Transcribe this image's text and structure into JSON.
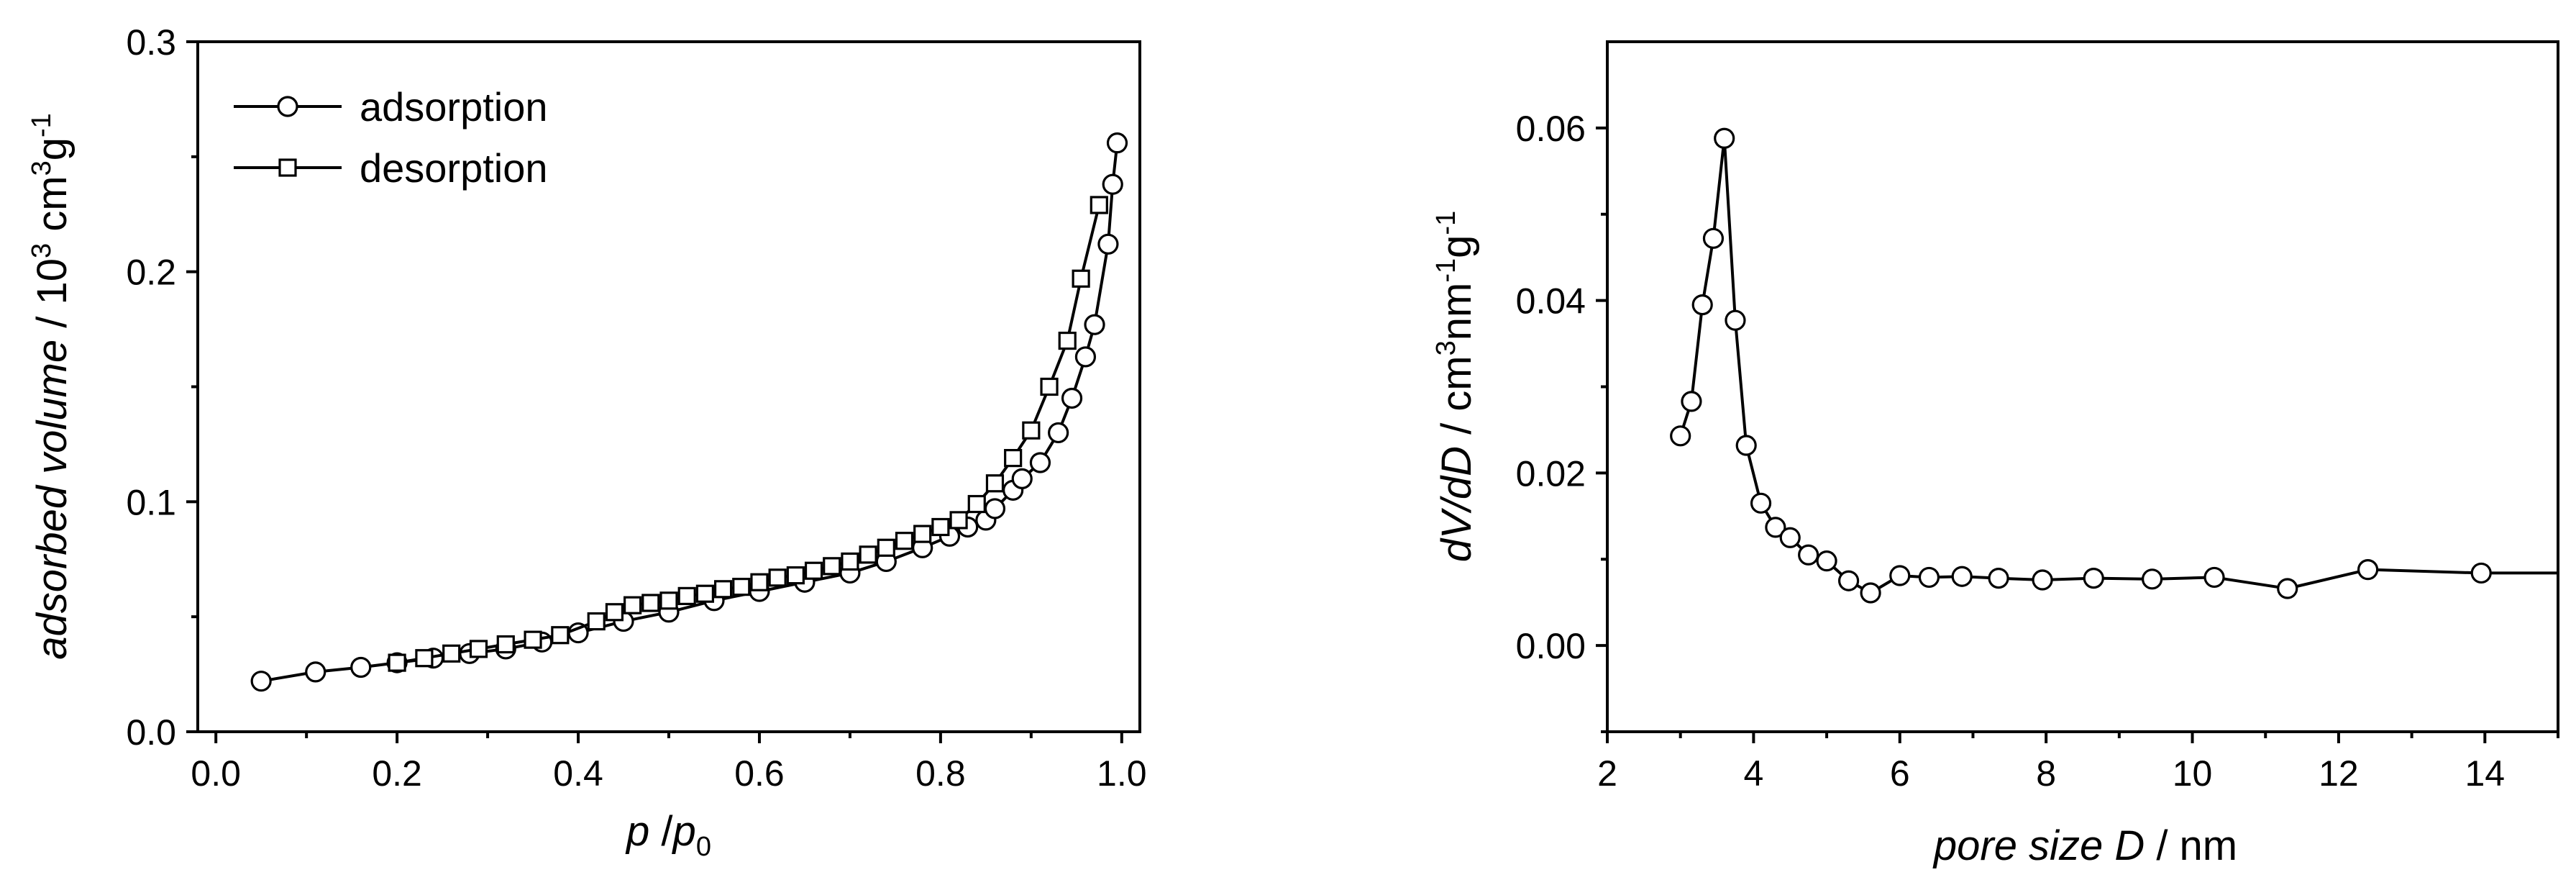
{
  "chart_data": [
    {
      "type": "line",
      "xlabel_main": "p",
      "xlabel_sep": " /",
      "xlabel_var": "p",
      "xlabel_sub": "0",
      "ylabel_main": "adsorbed volume",
      "ylabel_unit_a": " / 10",
      "ylabel_sup_a": "3",
      "ylabel_unit_b": " cm",
      "ylabel_sup_b": "3",
      "ylabel_unit_c": "g",
      "ylabel_sup_c": "-1",
      "xlim": [
        -0.02,
        1.02
      ],
      "ylim": [
        0.0,
        0.3
      ],
      "xticks": [
        {
          "value": 0.0,
          "label": "0.0"
        },
        {
          "value": 0.2,
          "label": "0.2"
        },
        {
          "value": 0.4,
          "label": "0.4"
        },
        {
          "value": 0.6,
          "label": "0.6"
        },
        {
          "value": 0.8,
          "label": "0.8"
        },
        {
          "value": 1.0,
          "label": "1.0"
        }
      ],
      "yticks": [
        {
          "value": 0.0,
          "label": "0.0"
        },
        {
          "value": 0.1,
          "label": "0.1"
        },
        {
          "value": 0.2,
          "label": "0.2"
        },
        {
          "value": 0.3,
          "label": "0.3"
        }
      ],
      "legend_position": "top-left",
      "series": [
        {
          "name": "adsorption",
          "marker": "circle",
          "x": [
            0.05,
            0.11,
            0.16,
            0.2,
            0.24,
            0.28,
            0.32,
            0.36,
            0.4,
            0.45,
            0.5,
            0.55,
            0.6,
            0.65,
            0.7,
            0.74,
            0.78,
            0.81,
            0.83,
            0.85,
            0.86,
            0.88,
            0.89,
            0.91,
            0.93,
            0.945,
            0.96,
            0.97,
            0.985,
            0.99,
            0.995
          ],
          "y": [
            0.022,
            0.026,
            0.028,
            0.03,
            0.032,
            0.034,
            0.036,
            0.039,
            0.043,
            0.048,
            0.052,
            0.057,
            0.061,
            0.065,
            0.069,
            0.074,
            0.08,
            0.085,
            0.089,
            0.092,
            0.097,
            0.105,
            0.11,
            0.117,
            0.13,
            0.145,
            0.163,
            0.177,
            0.212,
            0.238,
            0.256
          ]
        },
        {
          "name": "desorption",
          "marker": "square",
          "x": [
            0.2,
            0.23,
            0.26,
            0.29,
            0.32,
            0.35,
            0.38,
            0.42,
            0.44,
            0.46,
            0.48,
            0.5,
            0.52,
            0.54,
            0.56,
            0.58,
            0.6,
            0.62,
            0.64,
            0.66,
            0.68,
            0.7,
            0.72,
            0.74,
            0.76,
            0.78,
            0.8,
            0.82,
            0.84,
            0.86,
            0.88,
            0.9,
            0.92,
            0.94,
            0.955,
            0.975
          ],
          "y": [
            0.03,
            0.032,
            0.034,
            0.036,
            0.038,
            0.04,
            0.042,
            0.048,
            0.052,
            0.055,
            0.056,
            0.057,
            0.059,
            0.06,
            0.062,
            0.063,
            0.065,
            0.067,
            0.068,
            0.07,
            0.072,
            0.074,
            0.077,
            0.08,
            0.083,
            0.086,
            0.089,
            0.092,
            0.099,
            0.108,
            0.119,
            0.131,
            0.15,
            0.17,
            0.197,
            0.229
          ]
        }
      ]
    },
    {
      "type": "line",
      "xlabel_main": "pore size D",
      "xlabel_unit": " / nm",
      "ylabel_main": "dV/dD",
      "ylabel_unit_a": " / cm",
      "ylabel_sup_a": "3",
      "ylabel_unit_b": "nm",
      "ylabel_sup_b": "-1",
      "ylabel_unit_c": "g",
      "ylabel_sup_c": "-1",
      "xlim": [
        2,
        15
      ],
      "ylim": [
        -0.01,
        0.07
      ],
      "xticks": [
        {
          "value": 2,
          "label": "2"
        },
        {
          "value": 4,
          "label": "4"
        },
        {
          "value": 6,
          "label": "6"
        },
        {
          "value": 8,
          "label": "8"
        },
        {
          "value": 10,
          "label": "10"
        },
        {
          "value": 12,
          "label": "12"
        },
        {
          "value": 14,
          "label": "14"
        }
      ],
      "yticks": [
        {
          "value": 0.0,
          "label": "0.00"
        },
        {
          "value": 0.02,
          "label": "0.02"
        },
        {
          "value": 0.04,
          "label": "0.04"
        },
        {
          "value": 0.06,
          "label": "0.06"
        }
      ],
      "series": [
        {
          "marker": "circle",
          "x": [
            3.0,
            3.15,
            3.3,
            3.45,
            3.6,
            3.75,
            3.9,
            4.1,
            4.3,
            4.5,
            4.75,
            5.0,
            5.3,
            5.6,
            6.0,
            6.4,
            6.85,
            7.35,
            7.95,
            8.65,
            9.45,
            10.3,
            11.3,
            12.4,
            13.95,
            15.0
          ],
          "y": [
            0.0243,
            0.0283,
            0.0395,
            0.0472,
            0.0588,
            0.0377,
            0.0232,
            0.0165,
            0.0137,
            0.0125,
            0.0105,
            0.0098,
            0.0075,
            0.0061,
            0.0081,
            0.0079,
            0.008,
            0.0078,
            0.0076,
            0.0078,
            0.0077,
            0.0079,
            0.0066,
            0.0088,
            0.0084,
            0.0084
          ],
          "marker_count": 25
        }
      ]
    }
  ]
}
